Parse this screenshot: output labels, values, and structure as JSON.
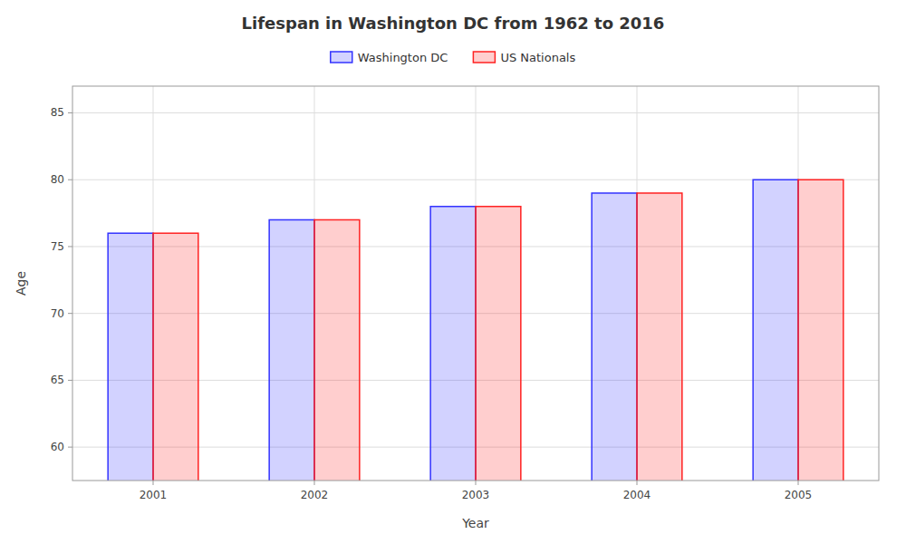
{
  "chart_data": {
    "type": "bar",
    "title": "Lifespan in Washington DC from 1962 to 2016",
    "x_label": "Year",
    "y_label": "Age",
    "categories": [
      2001,
      2002,
      2003,
      2004,
      2005
    ],
    "series": [
      {
        "name": "Washington DC",
        "color": "#3333ff",
        "values": [
          76,
          77,
          78,
          79,
          80
        ]
      },
      {
        "name": "US Nationals",
        "color": "#ff2222",
        "values": [
          76,
          77,
          78,
          79,
          80
        ]
      }
    ],
    "ylim": [
      57.5,
      87
    ],
    "yticks": [
      60,
      65,
      70,
      75,
      80,
      85
    ],
    "grid": true,
    "legend": "top"
  }
}
